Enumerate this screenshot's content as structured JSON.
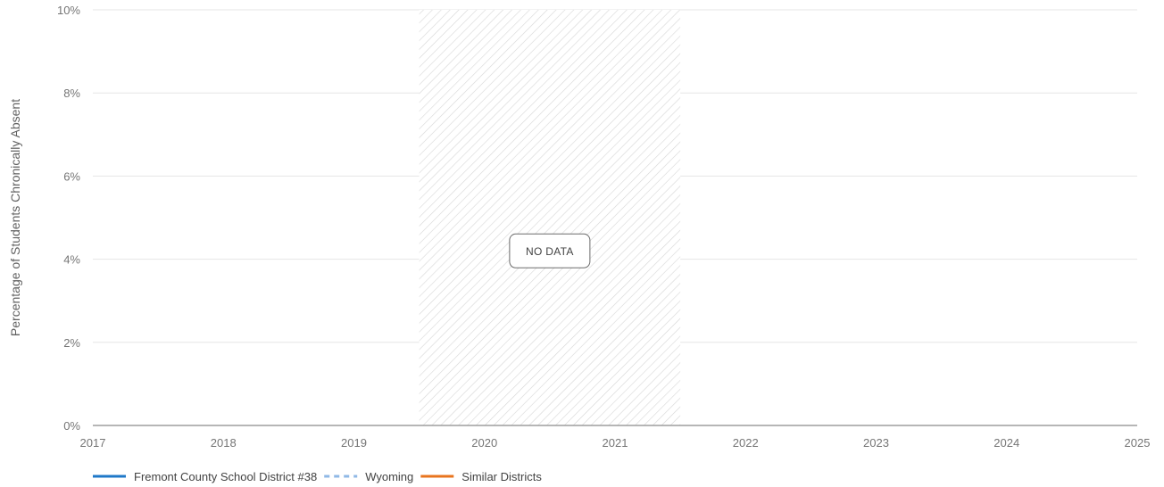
{
  "chart_data": {
    "type": "line",
    "title": "",
    "xlabel": "",
    "ylabel": "Percentage of Students Chronically Absent",
    "x_ticks": [
      "2017",
      "2018",
      "2019",
      "2020",
      "2021",
      "2022",
      "2023",
      "2024",
      "2025"
    ],
    "xlim": [
      2017,
      2025
    ],
    "y_ticks": [
      "0%",
      "2%",
      "4%",
      "6%",
      "8%",
      "10%"
    ],
    "ylim": [
      0,
      10
    ],
    "grid": true,
    "legend_position": "bottom-left",
    "no_data_region": {
      "label": "NO DATA",
      "x_start": 2019.5,
      "x_end": 2021.5
    },
    "series": [
      {
        "name": "Fremont County School District #38",
        "color": "#1f78c8",
        "style": "solid",
        "points": []
      },
      {
        "name": "Wyoming",
        "color": "#8fb8e6",
        "style": "dashed",
        "points": []
      },
      {
        "name": "Similar Districts",
        "color": "#e8741e",
        "style": "solid",
        "points": []
      }
    ]
  }
}
